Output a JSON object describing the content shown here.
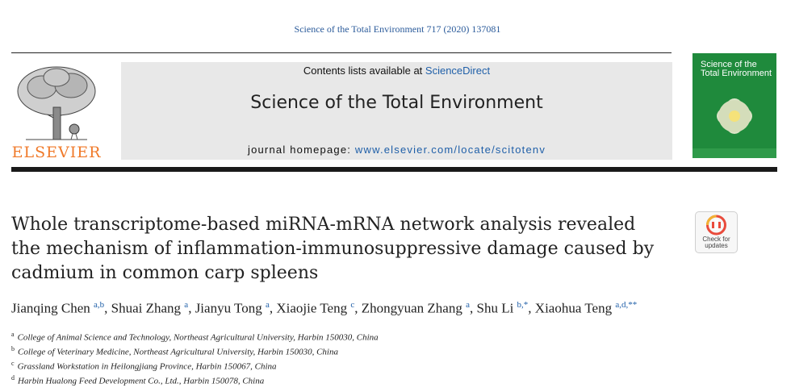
{
  "citation": "Science of the Total Environment 717 (2020) 137081",
  "publisher": {
    "logo_text": "ELSEVIER"
  },
  "banner": {
    "contents_prefix": "Contents lists available at ",
    "contents_link": "ScienceDirect",
    "journal_title": "Science of the Total Environment",
    "homepage_prefix": "journal homepage: ",
    "homepage_url": "www.elsevier.com/locate/scitotenv"
  },
  "cover": {
    "title_line1": "Science of the",
    "title_line2": "Total Environment"
  },
  "badge": {
    "line1": "Check for",
    "line2": "updates"
  },
  "article": {
    "title": "Whole transcriptome-based miRNA-mRNA network analysis revealed the mechanism of inflammation-immunosuppressive damage caused by cadmium in common carp spleens"
  },
  "authors": [
    {
      "name": "Jianqing Chen",
      "sup": "a,b",
      "sep": ", "
    },
    {
      "name": "Shuai Zhang",
      "sup": "a",
      "sep": ", "
    },
    {
      "name": "Jianyu Tong",
      "sup": "a",
      "sep": ", "
    },
    {
      "name": "Xiaojie Teng",
      "sup": "c",
      "sep": ", "
    },
    {
      "name": "Zhongyuan Zhang",
      "sup": "a",
      "sep": ", "
    },
    {
      "name": "Shu Li",
      "sup": "b,*",
      "sep": ", "
    },
    {
      "name": "Xiaohua Teng",
      "sup": "a,d,**",
      "sep": ""
    }
  ],
  "affiliations": [
    {
      "mark": "a",
      "text": "College of Animal Science and Technology, Northeast Agricultural University, Harbin 150030, China"
    },
    {
      "mark": "b",
      "text": "College of Veterinary Medicine, Northeast Agricultural University, Harbin 150030, China"
    },
    {
      "mark": "c",
      "text": "Grassland Workstation in Heilongjiang Province, Harbin 150067, China"
    },
    {
      "mark": "d",
      "text": "Harbin Hualong Feed Development Co., Ltd., Harbin 150078, China"
    }
  ],
  "colors": {
    "link": "#1f5fa8",
    "elsevier_orange": "#f07a2a",
    "cover_green": "#1f8a3c"
  }
}
